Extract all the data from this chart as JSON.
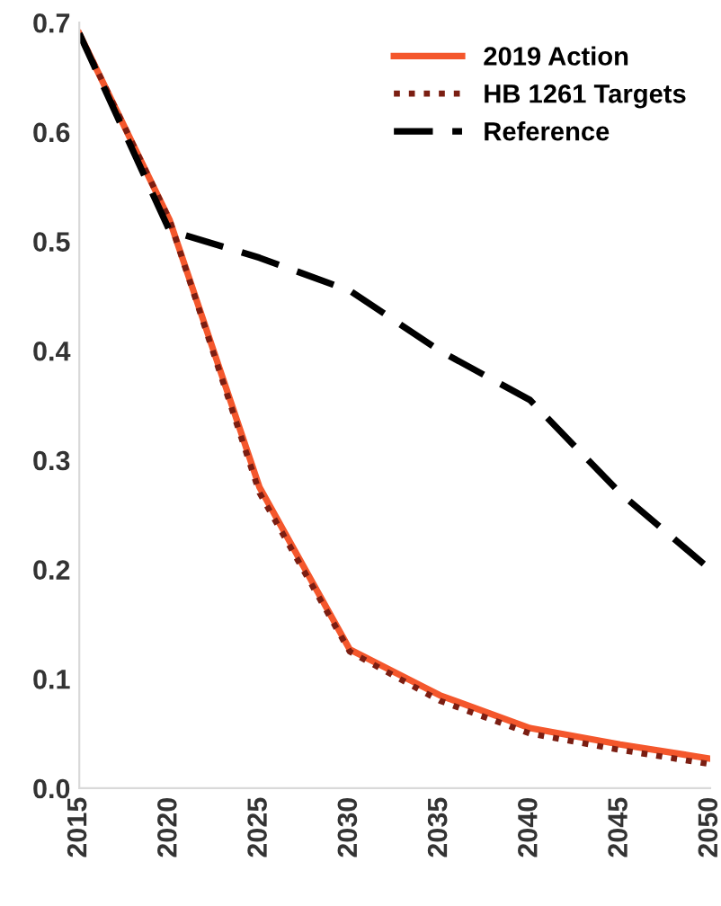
{
  "chart_data": {
    "type": "line",
    "x": [
      2015,
      2020,
      2025,
      2030,
      2035,
      2040,
      2045,
      2050
    ],
    "series": [
      {
        "name": "2019 Action",
        "color": "#f4572c",
        "line_style": "solid",
        "values": [
          0.69,
          0.52,
          0.275,
          0.127,
          0.085,
          0.055,
          0.04,
          0.027
        ]
      },
      {
        "name": "HB 1261 Targets",
        "color": "#7b1e12",
        "line_style": "dotted",
        "values": [
          0.69,
          0.52,
          0.27,
          0.125,
          0.08,
          0.05,
          0.035,
          0.022
        ]
      },
      {
        "name": "Reference",
        "color": "#000000",
        "line_style": "dashed",
        "values": [
          0.69,
          0.51,
          0.485,
          0.455,
          0.4,
          0.355,
          0.27,
          0.2
        ]
      }
    ],
    "xlim": [
      2015,
      2050
    ],
    "xticks": [
      2015,
      2020,
      2025,
      2030,
      2035,
      2040,
      2045,
      2050
    ],
    "ylim": [
      0,
      0.7
    ],
    "yticks": [
      {
        "value": 0,
        "label": "0.0"
      },
      0.1,
      0.2,
      0.3,
      0.4,
      0.5,
      0.6,
      0.7
    ],
    "grid": false,
    "legend": "top right",
    "marker": "none"
  }
}
